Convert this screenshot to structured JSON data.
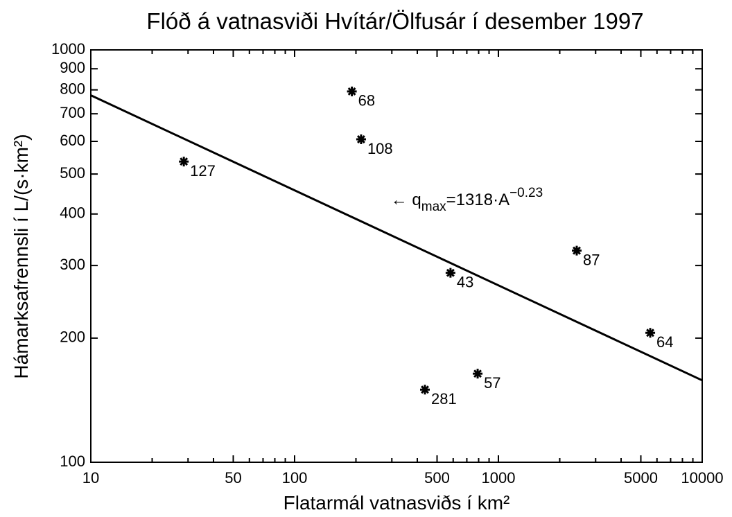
{
  "chart_data": {
    "type": "scatter",
    "title": "Flóð á vatnasviði Hvítár/Ölfusár í desember 1997",
    "xlabel": "Flatarmál vatnasviðs í km²",
    "ylabel": "Hámarksafrennsli í L/(s·km²)",
    "xscale": "log",
    "yscale": "log",
    "xlim": [
      10,
      10000
    ],
    "ylim": [
      100,
      1000
    ],
    "xticks": [
      10,
      50,
      100,
      500,
      1000,
      5000,
      10000
    ],
    "xminor": [
      20,
      30,
      40,
      60,
      70,
      80,
      90,
      200,
      300,
      400,
      600,
      700,
      800,
      900,
      2000,
      3000,
      4000,
      6000,
      7000,
      8000,
      9000
    ],
    "yticks": [
      100,
      200,
      300,
      400,
      500,
      600,
      700,
      800,
      900,
      1000
    ],
    "color": "#000000",
    "series": [
      {
        "x": [
          28.6,
          191,
          212,
          582,
          2423,
          5560,
          791,
          436
        ],
        "values": [
          536,
          793,
          607,
          288,
          326,
          206,
          164,
          150
        ],
        "labels": [
          "127",
          "68",
          "108",
          "43",
          "87",
          "64",
          "57",
          "281"
        ]
      }
    ],
    "fit": {
      "x": [
        10,
        10000
      ],
      "values": [
        776,
        158
      ]
    },
    "annotation": {
      "x": 700,
      "y": 420,
      "lead": "← q",
      "sub": "max",
      "main": "=1318·A",
      "sup": "−0.23"
    }
  }
}
